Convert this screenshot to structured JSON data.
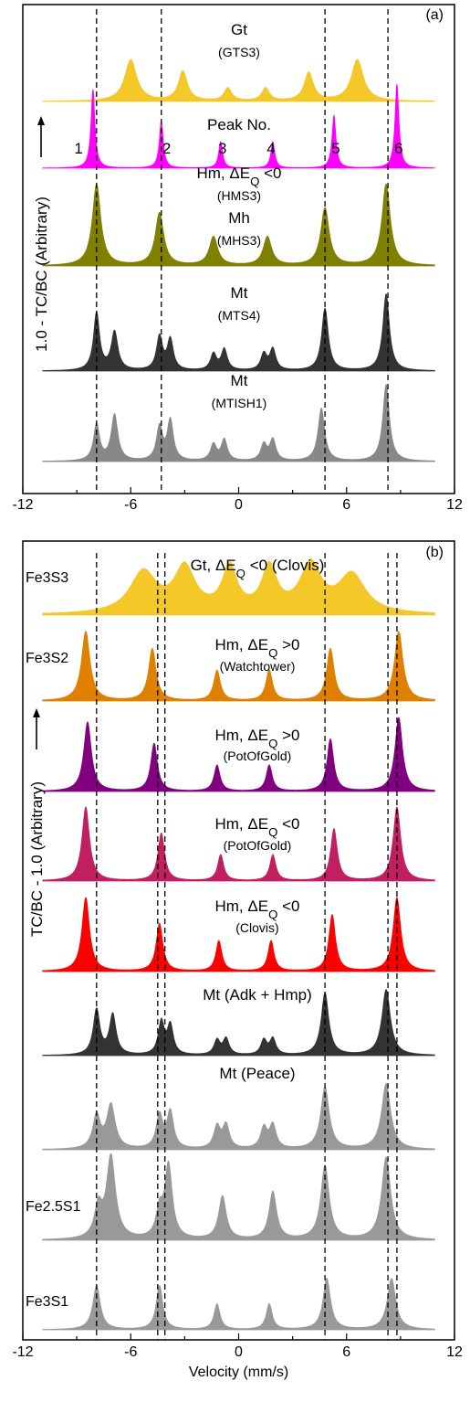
{
  "chart_data": [
    {
      "type": "line",
      "panel_label": "(a)",
      "ylabel": "1.0 - TC/BC  (Arbitrary)",
      "xlabel": "",
      "xlim": [
        -12,
        12
      ],
      "x_ticks": [
        -12,
        -6,
        0,
        6,
        12
      ],
      "x_tick_labels": [
        "-12",
        "-6",
        "0",
        "6",
        "12"
      ],
      "grid": false,
      "peak_header": "Peak No.",
      "peak_numbers": [
        "1",
        "2",
        "3",
        "4",
        "5",
        "6"
      ],
      "reference_lines_x": [
        -7.9,
        -4.3,
        4.8,
        8.3
      ],
      "series": [
        {
          "label": "Gt",
          "sample": "(GTS3)",
          "color": "#f5c82a",
          "peaks": [
            [
              -6.0,
              0.7,
              0.4
            ],
            [
              -3.1,
              0.5,
              0.3
            ],
            [
              -0.6,
              0.22,
              0.25
            ],
            [
              1.5,
              0.22,
              0.25
            ],
            [
              3.9,
              0.48,
              0.3
            ],
            [
              6.6,
              0.7,
              0.4
            ]
          ]
        },
        {
          "label": "Hm, ΔEQ <0",
          "sample": "(HMS3)",
          "color": "#ff00ff",
          "peaks": [
            [
              -8.1,
              0.75,
              0.13
            ],
            [
              -4.3,
              0.45,
              0.13
            ],
            [
              -1.0,
              0.25,
              0.13
            ],
            [
              1.9,
              0.25,
              0.13
            ],
            [
              5.3,
              0.5,
              0.13
            ],
            [
              8.8,
              0.8,
              0.13
            ]
          ]
        },
        {
          "label": "Mh",
          "sample": "(MHS3)",
          "color": "#808000",
          "peaks": [
            [
              -7.9,
              0.85,
              0.28
            ],
            [
              -4.4,
              0.55,
              0.28
            ],
            [
              -1.4,
              0.3,
              0.28
            ],
            [
              1.6,
              0.3,
              0.28
            ],
            [
              4.8,
              0.6,
              0.28
            ],
            [
              8.2,
              0.85,
              0.28
            ]
          ]
        },
        {
          "label": "Mt",
          "sample": "(MTS4)",
          "color": "#333333",
          "peaks": [
            [
              -7.9,
              0.6,
              0.2
            ],
            [
              -6.9,
              0.4,
              0.22
            ],
            [
              -4.4,
              0.35,
              0.2
            ],
            [
              -3.8,
              0.32,
              0.2
            ],
            [
              -1.4,
              0.17,
              0.2
            ],
            [
              -0.8,
              0.22,
              0.2
            ],
            [
              1.4,
              0.17,
              0.2
            ],
            [
              1.9,
              0.22,
              0.2
            ],
            [
              4.8,
              0.65,
              0.22
            ],
            [
              8.2,
              0.8,
              0.22
            ]
          ]
        },
        {
          "label": "Mt",
          "sample": "(MTISH1)",
          "color": "#888888",
          "peaks": [
            [
              -7.9,
              0.38,
              0.2
            ],
            [
              -6.9,
              0.48,
              0.22
            ],
            [
              -4.4,
              0.35,
              0.2
            ],
            [
              -3.8,
              0.42,
              0.2
            ],
            [
              -1.4,
              0.17,
              0.2
            ],
            [
              -0.8,
              0.22,
              0.2
            ],
            [
              1.4,
              0.17,
              0.2
            ],
            [
              1.9,
              0.22,
              0.2
            ],
            [
              4.6,
              0.55,
              0.22
            ],
            [
              8.2,
              0.8,
              0.22
            ]
          ]
        }
      ]
    },
    {
      "type": "line",
      "panel_label": "(b)",
      "ylabel": "TC/BC - 1.0  (Arbitrary)",
      "xlabel": "Velocity (mm/s)",
      "xlim": [
        -12,
        12
      ],
      "x_ticks": [
        -12,
        -6,
        0,
        6,
        12
      ],
      "x_tick_labels": [
        "-12",
        "-6",
        "0",
        "6",
        "12"
      ],
      "grid": false,
      "reference_lines_x": [
        -7.9,
        -4.5,
        -4.1,
        4.8,
        8.3,
        8.8
      ],
      "series": [
        {
          "label": "Gt, ΔEQ <0 (Clovis)",
          "sample": "",
          "side_label": "Fe3S3",
          "color": "#f5c82a",
          "peaks": [
            [
              -5.3,
              0.7,
              0.9
            ],
            [
              -3.0,
              0.75,
              0.7
            ],
            [
              -0.5,
              0.75,
              0.5
            ],
            [
              1.7,
              0.75,
              0.5
            ],
            [
              4.0,
              0.8,
              0.7
            ],
            [
              6.3,
              0.65,
              0.9
            ]
          ]
        },
        {
          "label": "Hm, ΔEQ >0",
          "sample": "(Watchtower)",
          "side_label": "Fe3S2",
          "color": "#e08000",
          "peaks": [
            [
              -8.5,
              0.8,
              0.28
            ],
            [
              -4.8,
              0.6,
              0.25
            ],
            [
              -1.2,
              0.35,
              0.22
            ],
            [
              1.7,
              0.35,
              0.22
            ],
            [
              5.1,
              0.6,
              0.25
            ],
            [
              8.9,
              0.8,
              0.28
            ]
          ]
        },
        {
          "label": "Hm, ΔEQ >0",
          "sample": "(PotOfGold)",
          "side_label": "",
          "color": "#800080",
          "peaks": [
            [
              -8.4,
              0.8,
              0.25
            ],
            [
              -4.7,
              0.55,
              0.22
            ],
            [
              -1.2,
              0.3,
              0.2
            ],
            [
              1.7,
              0.3,
              0.2
            ],
            [
              5.1,
              0.6,
              0.22
            ],
            [
              8.9,
              0.85,
              0.25
            ]
          ]
        },
        {
          "label": "Hm, ΔEQ <0",
          "sample": "(PotOfGold)",
          "side_label": "",
          "color": "#c02060",
          "peaks": [
            [
              -8.5,
              0.85,
              0.25
            ],
            [
              -4.3,
              0.55,
              0.22
            ],
            [
              -1.0,
              0.3,
              0.2
            ],
            [
              1.9,
              0.3,
              0.2
            ],
            [
              5.3,
              0.6,
              0.22
            ],
            [
              8.8,
              0.85,
              0.25
            ]
          ]
        },
        {
          "label": "Hm, ΔEQ <0",
          "sample": "(Clovis)",
          "side_label": "",
          "color": "#ff0000",
          "peaks": [
            [
              -8.5,
              0.85,
              0.25
            ],
            [
              -4.4,
              0.55,
              0.22
            ],
            [
              -1.1,
              0.35,
              0.2
            ],
            [
              1.8,
              0.35,
              0.2
            ],
            [
              5.2,
              0.65,
              0.22
            ],
            [
              8.8,
              0.85,
              0.25
            ]
          ]
        },
        {
          "label": "Mt (Adk + Hmp)",
          "sample": "",
          "side_label": "",
          "color": "#333333",
          "peaks": [
            [
              -7.9,
              0.62,
              0.22
            ],
            [
              -7.0,
              0.55,
              0.22
            ],
            [
              -4.3,
              0.45,
              0.2
            ],
            [
              -3.8,
              0.4,
              0.2
            ],
            [
              -1.2,
              0.2,
              0.2
            ],
            [
              -0.7,
              0.22,
              0.2
            ],
            [
              1.4,
              0.2,
              0.2
            ],
            [
              1.9,
              0.22,
              0.2
            ],
            [
              4.8,
              0.85,
              0.25
            ],
            [
              8.2,
              0.9,
              0.28
            ]
          ]
        },
        {
          "label": "Mt (Peace)",
          "sample": "",
          "side_label": "",
          "color": "#999999",
          "peaks": [
            [
              -7.9,
              0.45,
              0.25
            ],
            [
              -7.1,
              0.6,
              0.28
            ],
            [
              -4.4,
              0.45,
              0.22
            ],
            [
              -3.8,
              0.5,
              0.22
            ],
            [
              -1.2,
              0.3,
              0.22
            ],
            [
              -0.7,
              0.32,
              0.22
            ],
            [
              1.4,
              0.28,
              0.22
            ],
            [
              1.9,
              0.32,
              0.22
            ],
            [
              4.8,
              0.85,
              0.28
            ],
            [
              8.2,
              0.9,
              0.3
            ]
          ]
        },
        {
          "label": "",
          "sample": "",
          "side_label": "Fe2.5S1",
          "color": "#999999",
          "peaks": [
            [
              -7.8,
              0.35,
              0.25
            ],
            [
              -7.1,
              0.95,
              0.3
            ],
            [
              -4.4,
              0.3,
              0.22
            ],
            [
              -3.9,
              0.85,
              0.25
            ],
            [
              -0.9,
              0.5,
              0.25
            ],
            [
              1.9,
              0.55,
              0.25
            ],
            [
              4.8,
              0.85,
              0.28
            ],
            [
              8.2,
              0.95,
              0.3
            ]
          ]
        },
        {
          "label": "",
          "sample": "",
          "side_label": "Fe3S1",
          "color": "#999999",
          "peaks": [
            [
              -7.9,
              0.6,
              0.25
            ],
            [
              -4.4,
              0.6,
              0.22
            ],
            [
              -1.2,
              0.35,
              0.2
            ],
            [
              1.7,
              0.35,
              0.2
            ],
            [
              4.9,
              0.7,
              0.25
            ],
            [
              8.5,
              0.7,
              0.28
            ]
          ]
        }
      ]
    }
  ]
}
